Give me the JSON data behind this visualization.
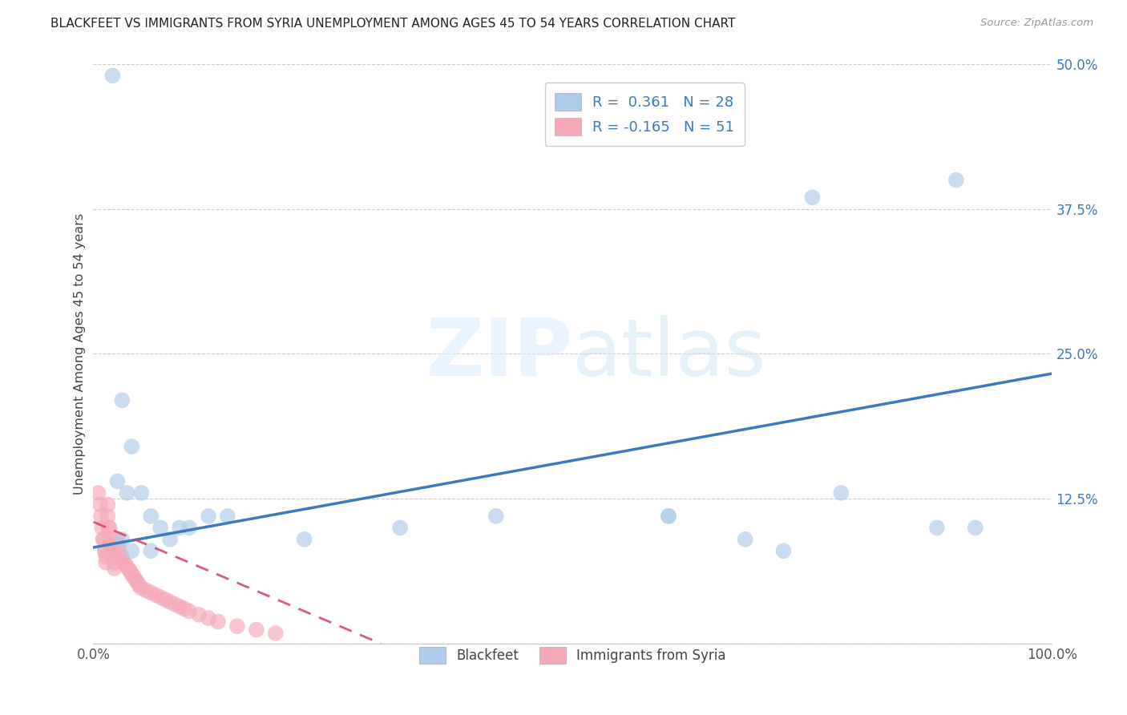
{
  "title": "BLACKFEET VS IMMIGRANTS FROM SYRIA UNEMPLOYMENT AMONG AGES 45 TO 54 YEARS CORRELATION CHART",
  "source": "Source: ZipAtlas.com",
  "ylabel": "Unemployment Among Ages 45 to 54 years",
  "xlim": [
    0.0,
    1.0
  ],
  "ylim": [
    0.0,
    0.5
  ],
  "xticks": [
    0.0,
    0.2,
    0.4,
    0.6,
    0.8,
    1.0
  ],
  "xticklabels": [
    "0.0%",
    "",
    "",
    "",
    "",
    "100.0%"
  ],
  "yticks": [
    0.0,
    0.125,
    0.25,
    0.375,
    0.5
  ],
  "yticklabels": [
    "",
    "12.5%",
    "25.0%",
    "37.5%",
    "50.0%"
  ],
  "blackfeet_R": 0.361,
  "blackfeet_N": 28,
  "syria_R": -0.165,
  "syria_N": 51,
  "blackfeet_color": "#aecce8",
  "blackfeet_line_color": "#3a7abf",
  "syria_color": "#f4a8b8",
  "syria_line_color": "#d04060",
  "blackfeet_scatter_x": [
    0.02,
    0.03,
    0.04,
    0.025,
    0.035,
    0.05,
    0.06,
    0.07,
    0.08,
    0.09,
    0.1,
    0.12,
    0.14,
    0.22,
    0.32,
    0.6,
    0.68,
    0.72,
    0.78,
    0.88,
    0.92,
    0.03,
    0.04,
    0.06,
    0.42,
    0.6,
    0.75,
    0.9
  ],
  "blackfeet_scatter_y": [
    0.49,
    0.21,
    0.17,
    0.14,
    0.13,
    0.13,
    0.11,
    0.1,
    0.09,
    0.1,
    0.1,
    0.11,
    0.11,
    0.09,
    0.1,
    0.11,
    0.09,
    0.08,
    0.13,
    0.1,
    0.1,
    0.09,
    0.08,
    0.08,
    0.11,
    0.11,
    0.385,
    0.4
  ],
  "syria_scatter_x": [
    0.005,
    0.007,
    0.008,
    0.009,
    0.01,
    0.011,
    0.012,
    0.012,
    0.013,
    0.013,
    0.015,
    0.015,
    0.016,
    0.017,
    0.018,
    0.019,
    0.02,
    0.021,
    0.022,
    0.022,
    0.025,
    0.026,
    0.027,
    0.028,
    0.03,
    0.032,
    0.034,
    0.036,
    0.038,
    0.04,
    0.042,
    0.044,
    0.046,
    0.048,
    0.05,
    0.055,
    0.06,
    0.065,
    0.07,
    0.075,
    0.08,
    0.085,
    0.09,
    0.095,
    0.1,
    0.11,
    0.12,
    0.13,
    0.15,
    0.17,
    0.19
  ],
  "syria_scatter_y": [
    0.13,
    0.12,
    0.11,
    0.1,
    0.09,
    0.09,
    0.08,
    0.08,
    0.075,
    0.07,
    0.12,
    0.11,
    0.1,
    0.1,
    0.09,
    0.085,
    0.08,
    0.075,
    0.07,
    0.065,
    0.09,
    0.085,
    0.08,
    0.075,
    0.075,
    0.07,
    0.068,
    0.065,
    0.063,
    0.06,
    0.058,
    0.055,
    0.053,
    0.05,
    0.048,
    0.046,
    0.044,
    0.042,
    0.04,
    0.038,
    0.036,
    0.034,
    0.032,
    0.03,
    0.028,
    0.025,
    0.022,
    0.019,
    0.015,
    0.012,
    0.009
  ],
  "background_color": "#ffffff",
  "grid_color": "#cccccc",
  "blue_line_x0": 0.0,
  "blue_line_y0": 0.083,
  "blue_line_x1": 1.0,
  "blue_line_y1": 0.233,
  "pink_line_x0": 0.0,
  "pink_line_y0": 0.105,
  "pink_line_x1": 0.3,
  "pink_line_y1": 0.0
}
